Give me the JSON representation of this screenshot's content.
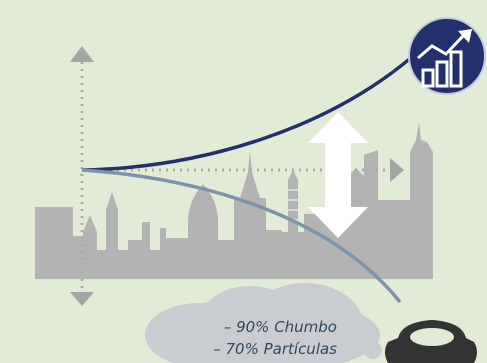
{
  "annotations": [
    {
      "text": "– 90% Chumbo"
    },
    {
      "text": "– 70% Partículas"
    }
  ],
  "icons": {
    "growth": "bar-chart-growth-icon",
    "car": "car-icon",
    "arrows": "vertical-double-arrow-icon"
  },
  "colors": {
    "background": "#e2ebd6",
    "skyline": "#b3b3b3",
    "rising_curve": "#23306e",
    "falling_curve": "#7d93aa",
    "badge": "#23306e",
    "car": "#333333",
    "cloud": "#c9cdd2",
    "arrow": "#ffffff"
  }
}
